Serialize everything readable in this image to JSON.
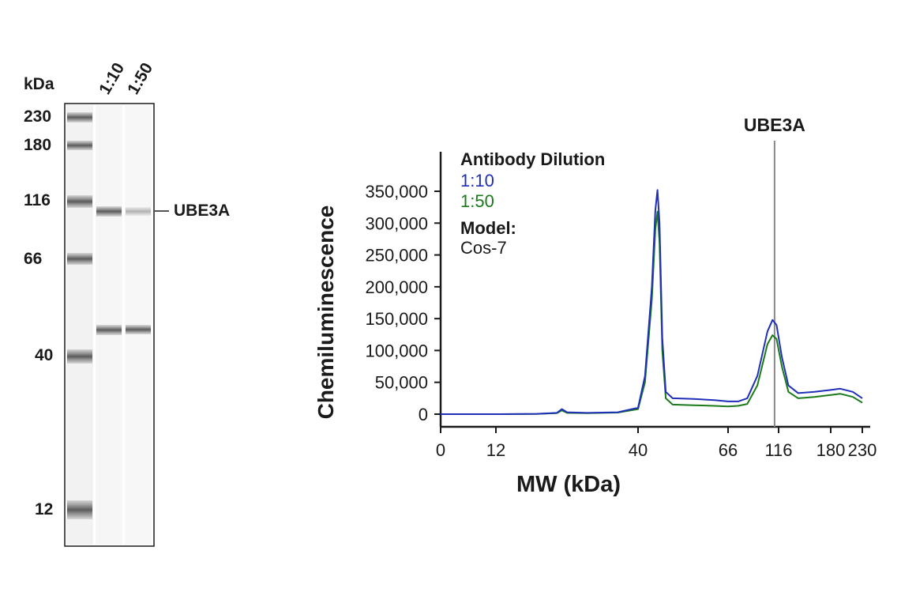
{
  "blot": {
    "unit_label": "kDa",
    "lane_labels": [
      "1:10",
      "1:50"
    ],
    "markers": [
      "230",
      "180",
      "116",
      "66",
      "40",
      "12"
    ],
    "target_label": "UBE3A"
  },
  "chart_data": {
    "type": "line",
    "title": "",
    "xlabel": "MW (kDa)",
    "ylabel": "Chemiluminescence",
    "x_ticks": [
      "0",
      "12",
      "40",
      "66",
      "116",
      "180",
      "230"
    ],
    "y_ticks": [
      "350,000",
      "300,000",
      "250,000",
      "200,000",
      "150,000",
      "100,000",
      "50,000",
      "0"
    ],
    "ylim": [
      0,
      350000
    ],
    "annotation": "UBE3A",
    "legend": {
      "title": "Antibody Dilution",
      "entries": [
        "1:10",
        "1:50"
      ],
      "model_label": "Model:",
      "model_value": "Cos-7",
      "position": "top-left"
    },
    "colors": {
      "1:10": "#1f2fb8",
      "1:50": "#1a7a1a",
      "annotation_line": "#888888"
    },
    "series": [
      {
        "name": "1:10",
        "points": [
          [
            0,
            0
          ],
          [
            12,
            0
          ],
          [
            20,
            500
          ],
          [
            24,
            2000
          ],
          [
            25,
            8000
          ],
          [
            26,
            3000
          ],
          [
            30,
            2000
          ],
          [
            36,
            3000
          ],
          [
            40,
            10000
          ],
          [
            42,
            60000
          ],
          [
            44,
            200000
          ],
          [
            45,
            320000
          ],
          [
            45.6,
            352000
          ],
          [
            46.2,
            300000
          ],
          [
            47,
            120000
          ],
          [
            48,
            35000
          ],
          [
            50,
            25000
          ],
          [
            56,
            24000
          ],
          [
            62,
            22000
          ],
          [
            66,
            20000
          ],
          [
            76,
            20000
          ],
          [
            85,
            25000
          ],
          [
            95,
            60000
          ],
          [
            105,
            130000
          ],
          [
            110,
            148000
          ],
          [
            114,
            140000
          ],
          [
            120,
            90000
          ],
          [
            128,
            45000
          ],
          [
            140,
            33000
          ],
          [
            160,
            35000
          ],
          [
            180,
            38000
          ],
          [
            195,
            40000
          ],
          [
            215,
            35000
          ],
          [
            230,
            25000
          ]
        ]
      },
      {
        "name": "1:50",
        "points": [
          [
            0,
            0
          ],
          [
            12,
            0
          ],
          [
            20,
            400
          ],
          [
            24,
            1500
          ],
          [
            25,
            6000
          ],
          [
            26,
            2000
          ],
          [
            30,
            1500
          ],
          [
            36,
            2500
          ],
          [
            40,
            8000
          ],
          [
            42,
            50000
          ],
          [
            44,
            180000
          ],
          [
            45,
            290000
          ],
          [
            45.6,
            318000
          ],
          [
            46.2,
            270000
          ],
          [
            47,
            100000
          ],
          [
            48,
            25000
          ],
          [
            50,
            15000
          ],
          [
            56,
            14000
          ],
          [
            62,
            13000
          ],
          [
            66,
            12000
          ],
          [
            76,
            13000
          ],
          [
            85,
            16000
          ],
          [
            95,
            45000
          ],
          [
            105,
            110000
          ],
          [
            110,
            124000
          ],
          [
            114,
            118000
          ],
          [
            120,
            75000
          ],
          [
            128,
            35000
          ],
          [
            140,
            25000
          ],
          [
            160,
            27000
          ],
          [
            180,
            30000
          ],
          [
            195,
            32000
          ],
          [
            215,
            27000
          ],
          [
            230,
            18000
          ]
        ]
      }
    ]
  }
}
